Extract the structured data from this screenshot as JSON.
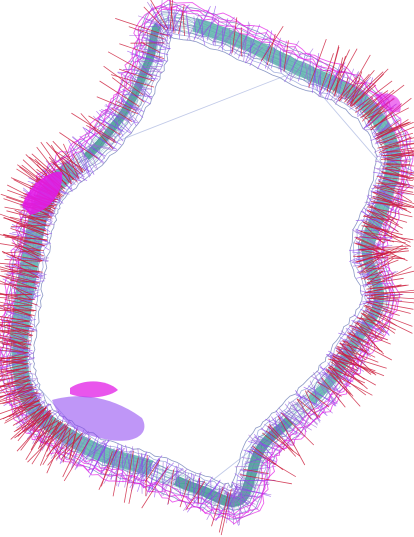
{
  "figure": {
    "kind": "wireframe-ring-visualization",
    "background": "#ffffff",
    "colors": {
      "teal_fill": "#5fb3ad",
      "teal_dark": "#3f948f",
      "magenta": "#e21ce6",
      "violet": "#8a3ff0",
      "purple": "#9c62d8",
      "crimson": "#cc1c3a",
      "lavender": "#8f9fd6",
      "slate_blue": "#6f7fb8"
    }
  }
}
